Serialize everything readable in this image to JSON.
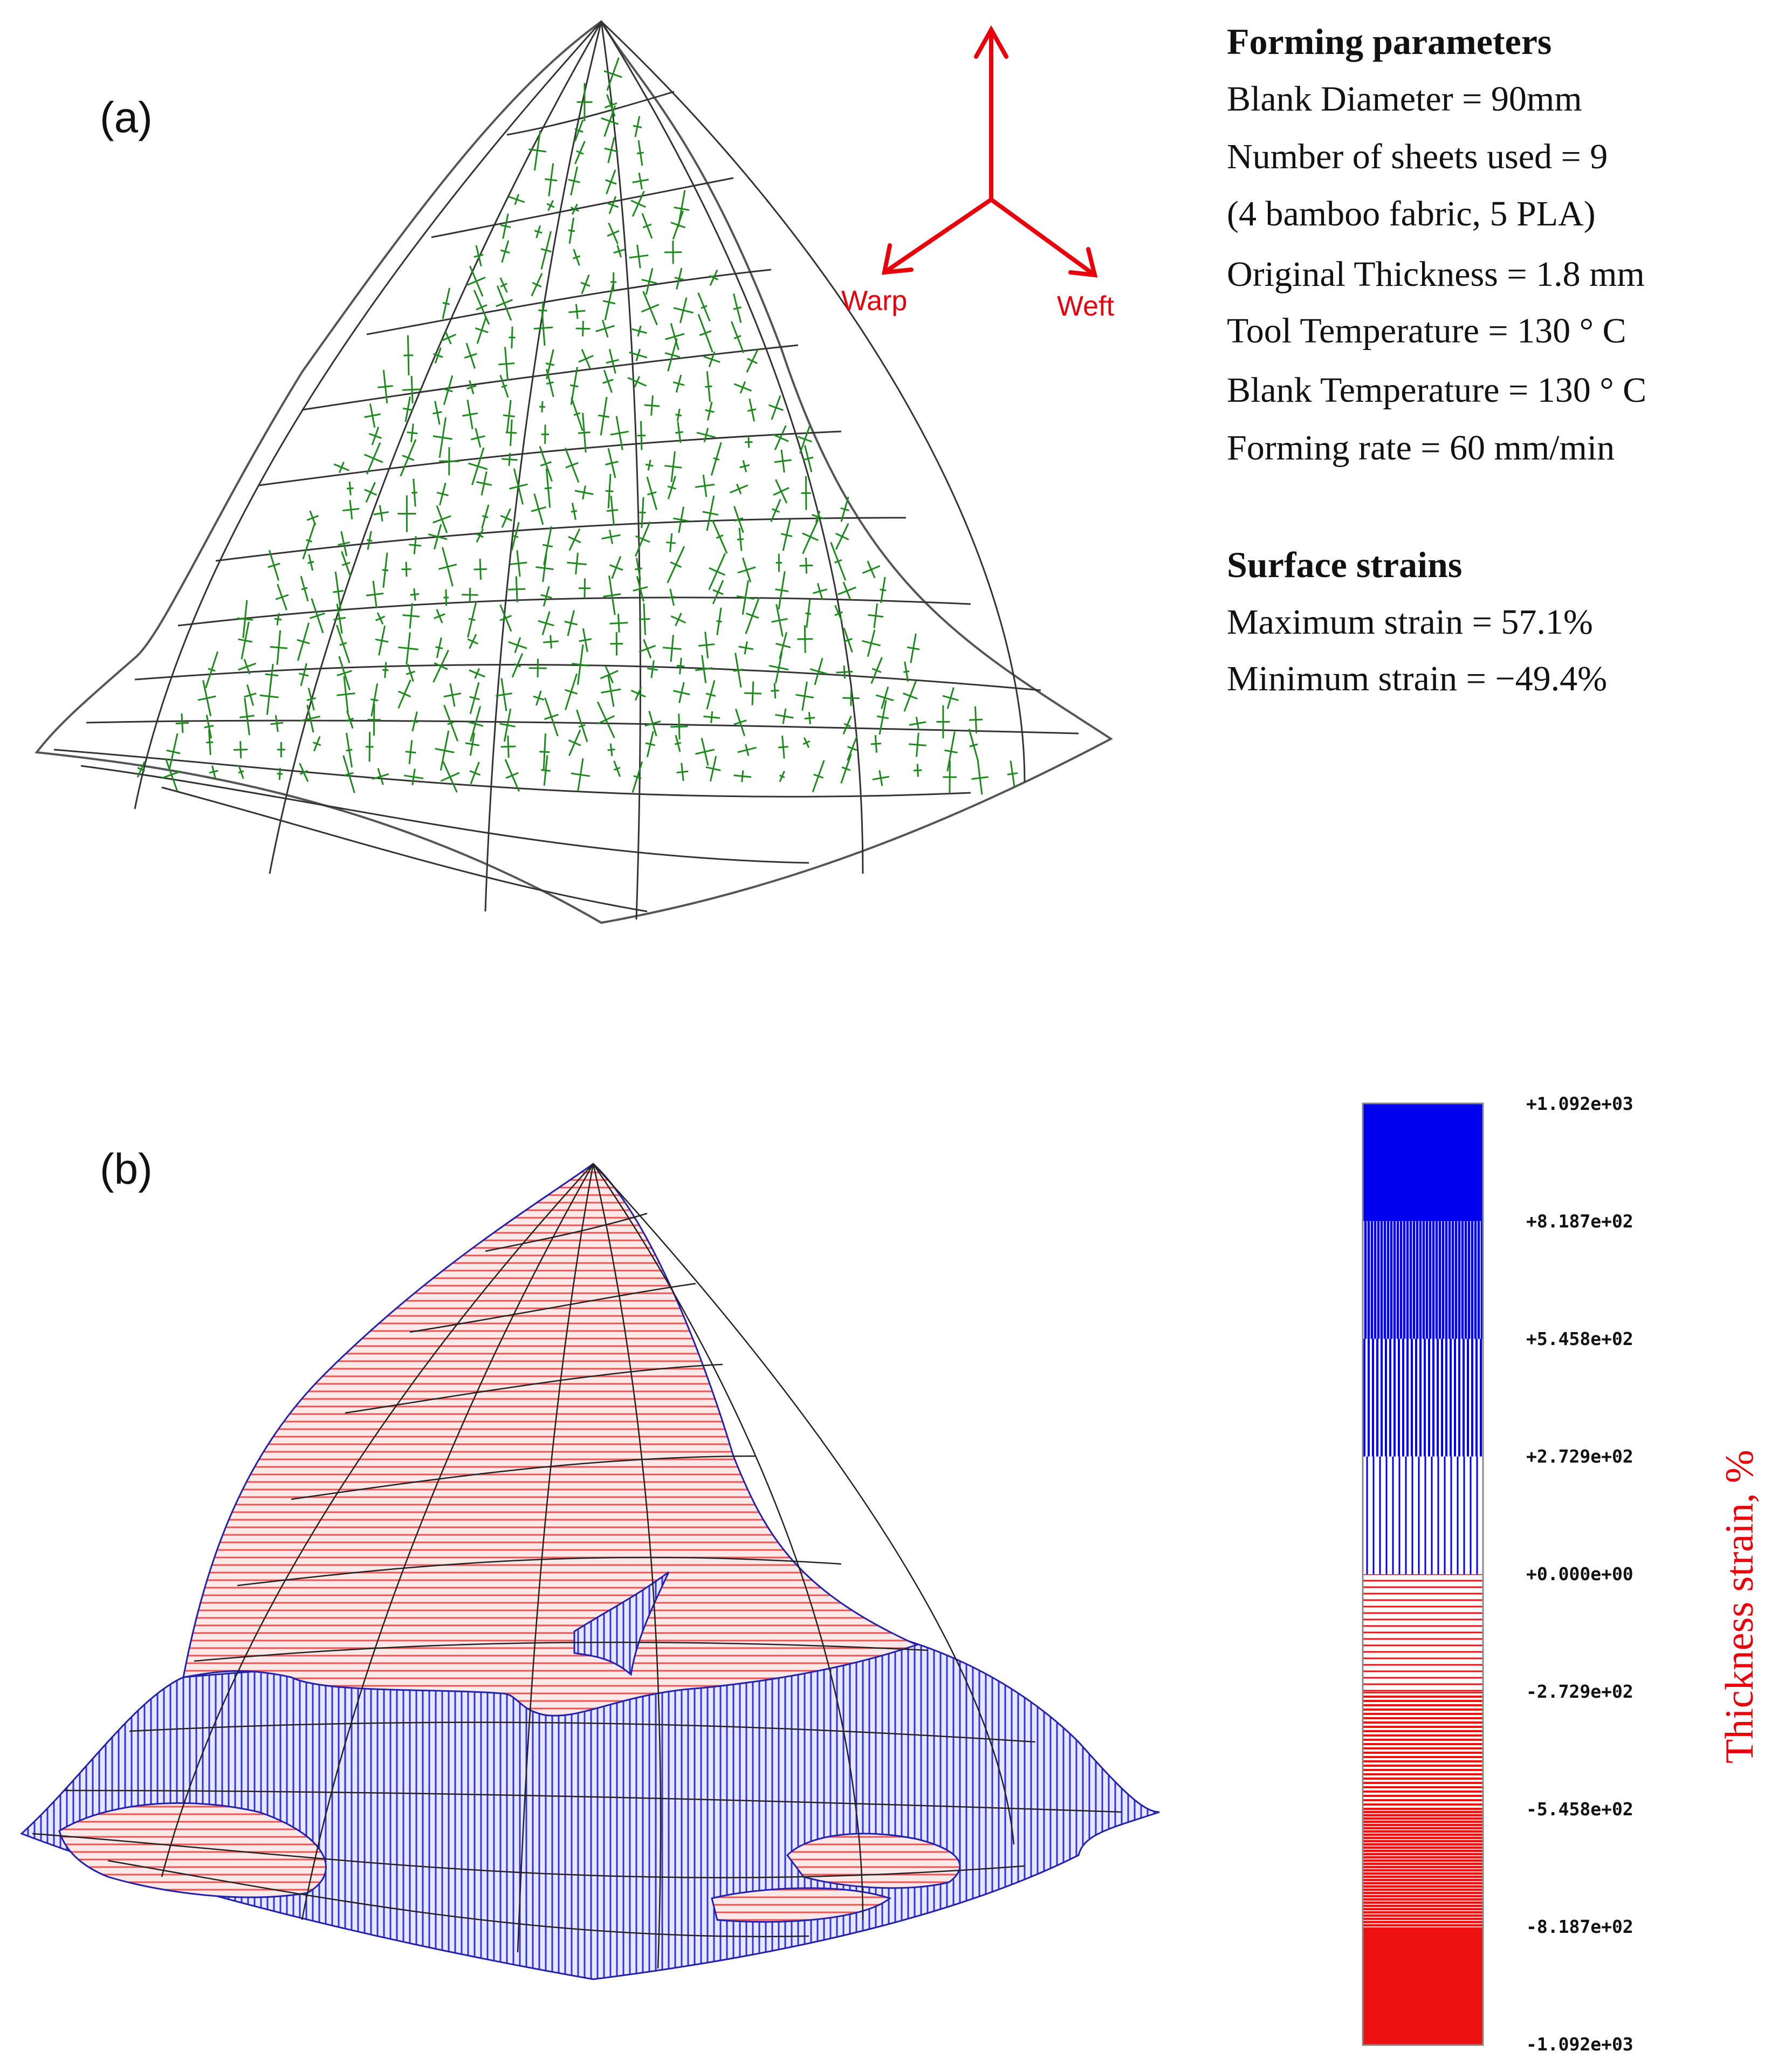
{
  "panel_a": {
    "label": "(a)",
    "arrows": {
      "warp": "Warp",
      "weft": "Weft"
    },
    "forming_parameters": {
      "heading": "Forming parameters",
      "lines": [
        "Blank Diameter = 90mm",
        "Number of sheets used = 9",
        "(4 bamboo fabric, 5 PLA)",
        "Original Thickness = 1.8 mm",
        "Tool Temperature = 130 °  C",
        "Blank Temperature = 130 °  C",
        "Forming rate = 60 mm/min"
      ]
    },
    "surface_strains": {
      "heading": "Surface strains",
      "lines": [
        "Maximum strain = 57.1%",
        "Minimum strain = −49.4%"
      ]
    }
  },
  "panel_b": {
    "label": "(b)",
    "colorbar": {
      "title": "Thickness strain, %",
      "ticks": [
        "+1.092e+03",
        "+8.187e+02",
        "+5.458e+02",
        "+2.729e+02",
        "+0.000e+00",
        "-2.729e+02",
        "-5.458e+02",
        "-8.187e+02",
        "-1.092e+03"
      ]
    }
  },
  "colors": {
    "arrow": "#e8000b",
    "mesh": "#1a1a1a",
    "strain_marks": "#1e8a1e",
    "positive": "#0000ee",
    "negative": "#ee1111"
  }
}
